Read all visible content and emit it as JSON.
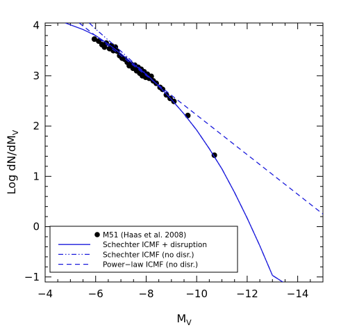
{
  "chart_data": {
    "type": "scatter",
    "title": "",
    "xlabel": "M",
    "xlabel_sub": "V",
    "ylabel": "Log dN/dM",
    "ylabel_sub": "V",
    "xlim": [
      -4,
      -15
    ],
    "ylim": [
      -1.1,
      4.05
    ],
    "x_reversed": true,
    "grid": false,
    "legend_position": "bottom-left",
    "x_ticks": [
      -4,
      -6,
      -8,
      -10,
      -12,
      -14
    ],
    "x_tick_labels": [
      "−4",
      "−6",
      "−8",
      "−10",
      "−12",
      "−14"
    ],
    "y_ticks": [
      -1,
      0,
      1,
      2,
      3,
      4
    ],
    "y_tick_labels": [
      "−1",
      "0",
      "1",
      "2",
      "3",
      "4"
    ],
    "colors": {
      "data_points": "#000000",
      "models": "#1a1adb"
    },
    "series": [
      {
        "name": "M51 (Haas et al. 2008)",
        "kind": "points",
        "points": [
          [
            -5.95,
            3.73
          ],
          [
            -6.12,
            3.69
          ],
          [
            -6.25,
            3.62
          ],
          [
            -6.35,
            3.57
          ],
          [
            -6.42,
            3.65
          ],
          [
            -6.55,
            3.54
          ],
          [
            -6.62,
            3.6
          ],
          [
            -6.7,
            3.5
          ],
          [
            -6.78,
            3.57
          ],
          [
            -6.85,
            3.49
          ],
          [
            -6.95,
            3.4
          ],
          [
            -7.05,
            3.35
          ],
          [
            -7.15,
            3.33
          ],
          [
            -7.25,
            3.27
          ],
          [
            -7.33,
            3.2
          ],
          [
            -7.4,
            3.23
          ],
          [
            -7.48,
            3.15
          ],
          [
            -7.55,
            3.21
          ],
          [
            -7.62,
            3.1
          ],
          [
            -7.68,
            3.17
          ],
          [
            -7.75,
            3.05
          ],
          [
            -7.8,
            3.13
          ],
          [
            -7.85,
            3.0
          ],
          [
            -7.92,
            3.08
          ],
          [
            -7.98,
            2.97
          ],
          [
            -8.05,
            3.03
          ],
          [
            -8.12,
            2.95
          ],
          [
            -8.2,
            2.99
          ],
          [
            -8.28,
            2.9
          ],
          [
            -8.4,
            2.85
          ],
          [
            -8.55,
            2.77
          ],
          [
            -8.65,
            2.73
          ],
          [
            -8.8,
            2.62
          ],
          [
            -8.95,
            2.55
          ],
          [
            -9.1,
            2.49
          ],
          [
            -9.65,
            2.21
          ],
          [
            -10.7,
            1.42
          ]
        ]
      },
      {
        "name": "Schechter ICMF + disruption",
        "kind": "line",
        "dash": "solid",
        "points": [
          [
            -4.8,
            4.05
          ],
          [
            -5.5,
            3.92
          ],
          [
            -6.0,
            3.8
          ],
          [
            -6.5,
            3.63
          ],
          [
            -7.0,
            3.44
          ],
          [
            -7.5,
            3.23
          ],
          [
            -8.0,
            3.03
          ],
          [
            -8.5,
            2.8
          ],
          [
            -9.0,
            2.53
          ],
          [
            -9.5,
            2.24
          ],
          [
            -10.0,
            1.92
          ],
          [
            -10.5,
            1.55
          ],
          [
            -11.0,
            1.15
          ],
          [
            -11.5,
            0.68
          ],
          [
            -12.0,
            0.17
          ],
          [
            -12.5,
            -0.38
          ],
          [
            -13.0,
            -0.97
          ],
          [
            -13.5,
            -1.13
          ]
        ]
      },
      {
        "name": "Schechter ICMF  (no disr.)",
        "kind": "line",
        "dash": "dash-dot-dot",
        "points": [
          [
            -5.75,
            4.05
          ],
          [
            -6.0,
            3.93
          ],
          [
            -6.5,
            3.71
          ],
          [
            -7.0,
            3.49
          ],
          [
            -7.5,
            3.26
          ],
          [
            -8.0,
            3.04
          ],
          [
            -8.5,
            2.79
          ],
          [
            -9.0,
            2.53
          ],
          [
            -9.5,
            2.24
          ],
          [
            -10.0,
            1.92
          ],
          [
            -10.5,
            1.55
          ],
          [
            -11.0,
            1.15
          ],
          [
            -11.5,
            0.68
          ],
          [
            -12.0,
            0.17
          ],
          [
            -12.5,
            -0.38
          ],
          [
            -13.0,
            -0.97
          ],
          [
            -13.5,
            -1.13
          ]
        ]
      },
      {
        "name": "Power−law ICMF (no disr.)",
        "kind": "line",
        "dash": "dashed",
        "points": [
          [
            -5.35,
            4.05
          ],
          [
            -15.0,
            0.25
          ]
        ]
      }
    ]
  }
}
